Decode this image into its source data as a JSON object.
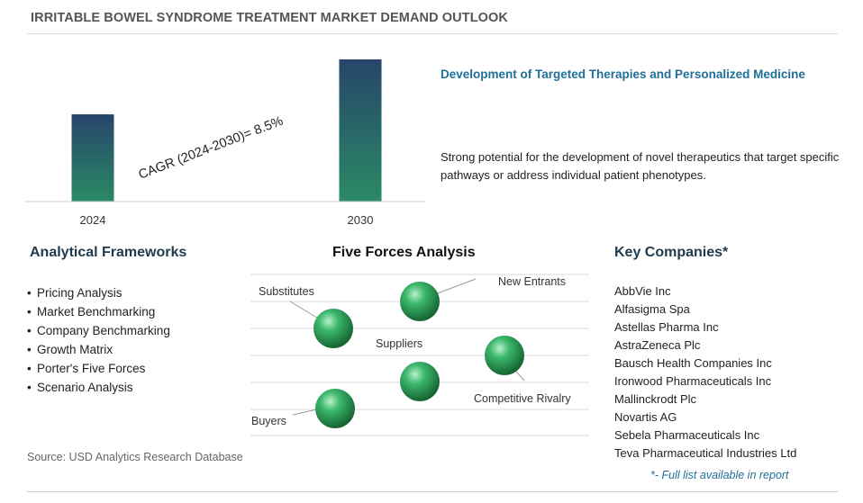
{
  "title": "IRRITABLE BOWEL SYNDROME TREATMENT MARKET DEMAND OUTLOOK",
  "chart_data": {
    "type": "bar",
    "categories": [
      "2024",
      "2030"
    ],
    "annotation": "CAGR (2024-2030)=  8.5%",
    "cagr_percent": 8.5,
    "value_axis": "not shown",
    "relative_values": [
      1.0,
      1.63
    ]
  },
  "highlight": {
    "heading": "Development of Targeted Therapies and Personalized Medicine",
    "text": "Strong potential for the development of novel therapeutics that target specific pathways or address individual patient phenotypes."
  },
  "frameworks": {
    "heading": "Analytical Frameworks",
    "items": [
      "Pricing Analysis",
      "Market Benchmarking",
      "Company Benchmarking",
      "Growth Matrix",
      "Porter's Five Forces",
      "Scenario Analysis"
    ]
  },
  "five_forces": {
    "heading": "Five Forces Analysis",
    "labels": {
      "substitutes": "Substitutes",
      "new_entrants": "New Entrants",
      "suppliers": "Suppliers",
      "competitive_rivalry": "Competitive Rivalry",
      "buyers": "Buyers"
    },
    "sphere_color": "#2e9e5e"
  },
  "companies": {
    "heading": "Key Companies*",
    "items": [
      "AbbVie Inc",
      "Alfasigma Spa",
      "Astellas Pharma Inc",
      "AstraZeneca Plc",
      "Bausch Health Companies Inc",
      "Ironwood Pharmaceuticals Inc",
      "Mallinckrodt Plc",
      "Novartis AG",
      "Sebela Pharmaceuticals Inc",
      "Teva Pharmaceutical Industries Ltd"
    ],
    "footnote": "*- Full list available in report"
  },
  "source": "Source: USD Analytics Research Database",
  "colors": {
    "bar_top": "#27456a",
    "bar_bottom": "#2a8a66",
    "heading_blue": "#1f6f98"
  }
}
